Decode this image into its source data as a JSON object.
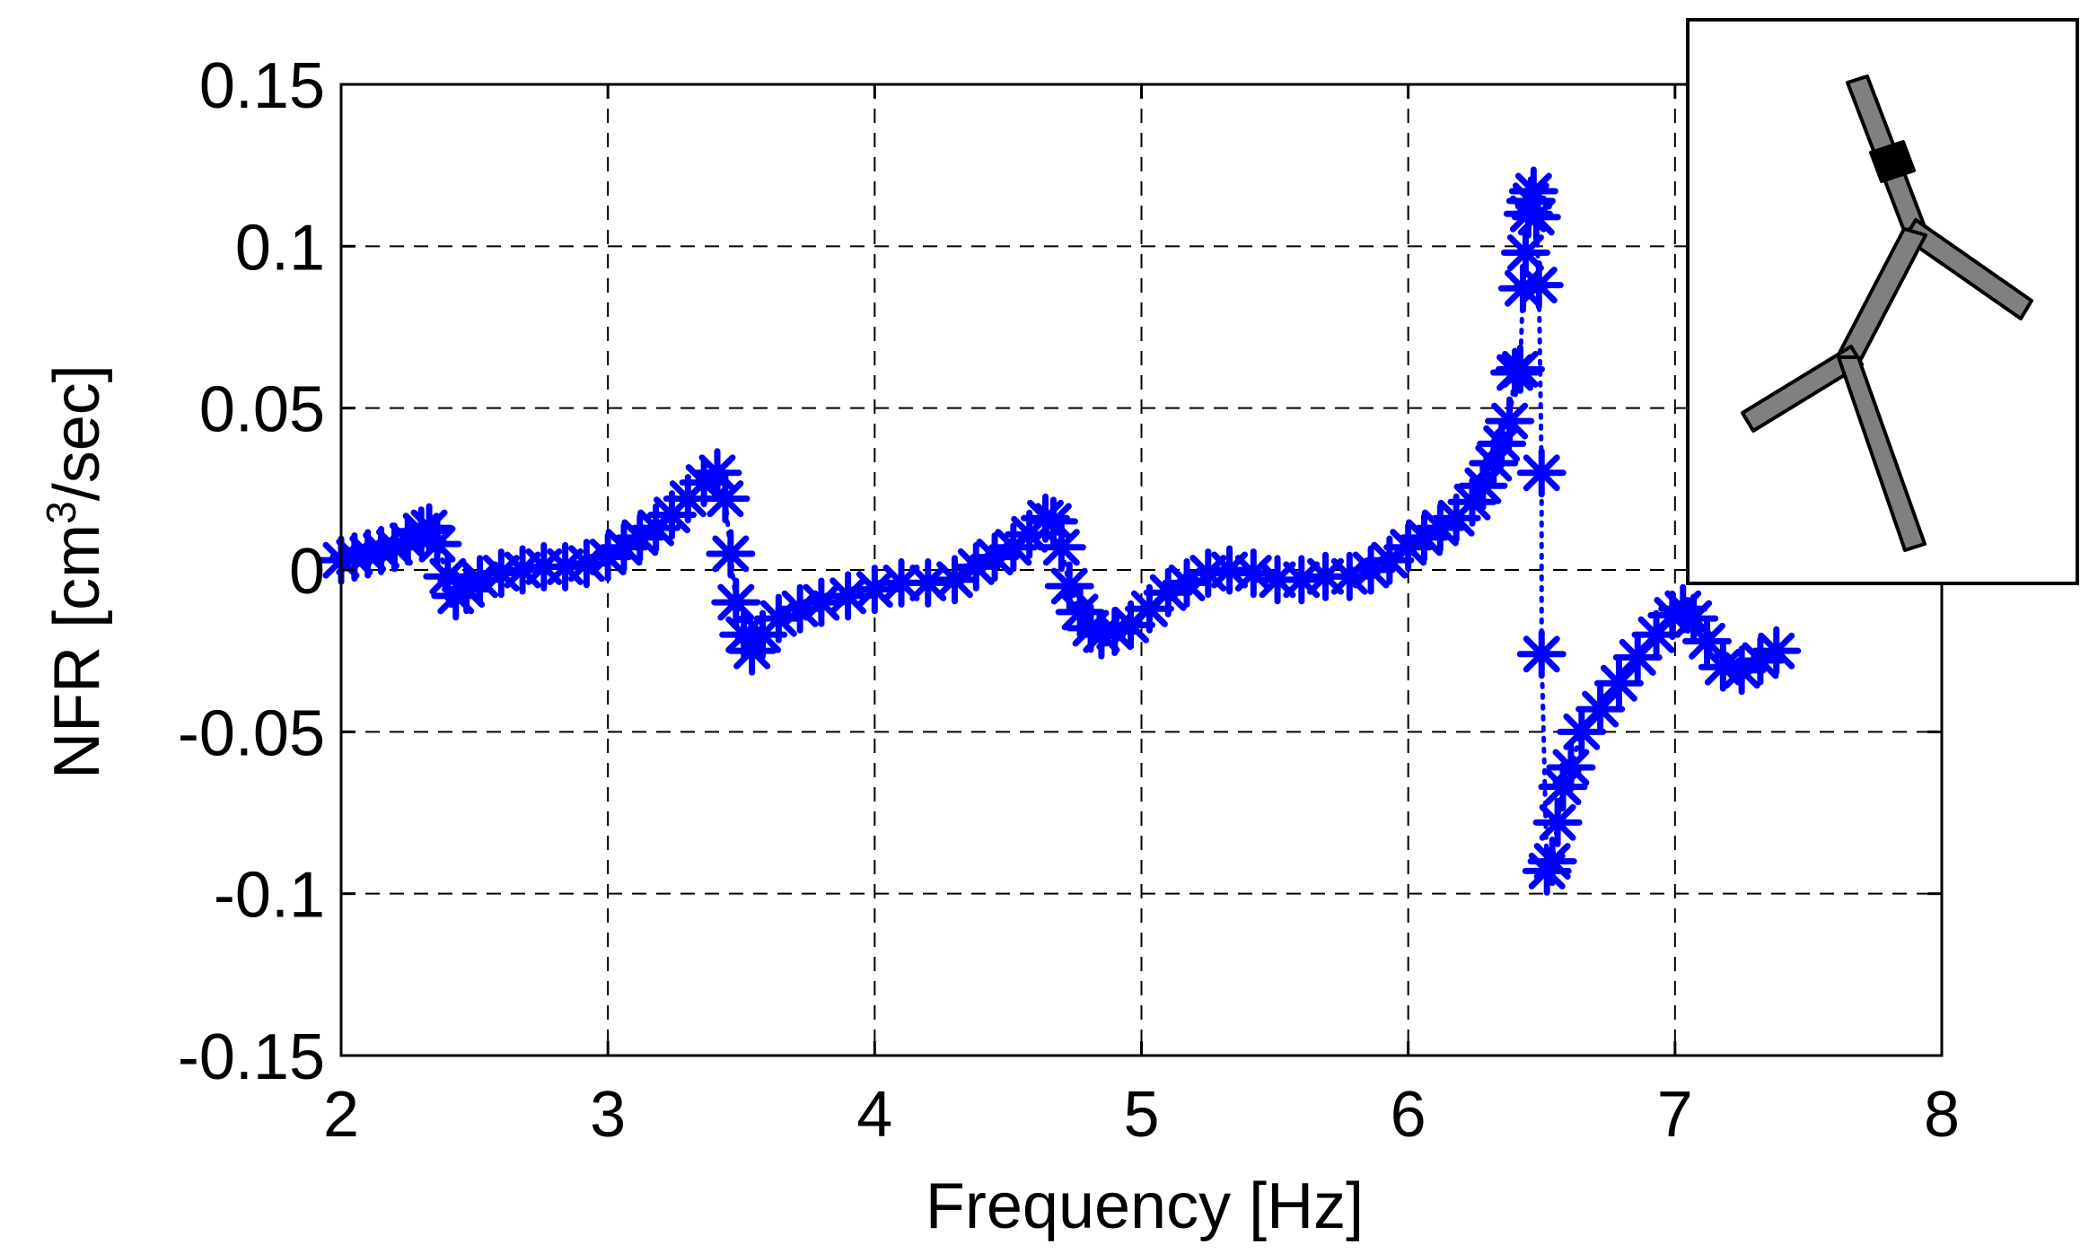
{
  "chart_data": {
    "type": "scatter",
    "title": "",
    "xlabel": "Frequency [Hz]",
    "ylabel_parts": {
      "prefix": "NFR [cm",
      "superscript": "3",
      "suffix": "/sec]"
    },
    "xlim": [
      2,
      8
    ],
    "ylim": [
      -0.15,
      0.15
    ],
    "x_ticks": [
      2,
      3,
      4,
      5,
      6,
      7,
      8
    ],
    "x_tick_labels": [
      "2",
      "3",
      "4",
      "5",
      "6",
      "7",
      "8"
    ],
    "y_ticks": [
      -0.15,
      -0.1,
      -0.05,
      0,
      0.05,
      0.1,
      0.15
    ],
    "y_tick_labels": [
      "-0.15",
      "-0.1",
      "-0.05",
      "0",
      "0.05",
      "0.1",
      "0.15"
    ],
    "grid": true,
    "legend": "none",
    "series": [
      {
        "color": "#0000ff",
        "marker": "asterisk",
        "line_style": "dotted",
        "points": [
          [
            2.0,
            0.003
          ],
          [
            2.05,
            0.004
          ],
          [
            2.1,
            0.005
          ],
          [
            2.15,
            0.006
          ],
          [
            2.2,
            0.007
          ],
          [
            2.25,
            0.009
          ],
          [
            2.3,
            0.012
          ],
          [
            2.33,
            0.013
          ],
          [
            2.36,
            0.008
          ],
          [
            2.4,
            -0.002
          ],
          [
            2.43,
            -0.008
          ],
          [
            2.47,
            -0.006
          ],
          [
            2.52,
            -0.003
          ],
          [
            2.6,
            -0.001
          ],
          [
            2.68,
            0.0
          ],
          [
            2.76,
            0.001
          ],
          [
            2.84,
            0.001
          ],
          [
            2.92,
            0.002
          ],
          [
            3.0,
            0.004
          ],
          [
            3.06,
            0.007
          ],
          [
            3.12,
            0.01
          ],
          [
            3.18,
            0.013
          ],
          [
            3.24,
            0.017
          ],
          [
            3.3,
            0.022
          ],
          [
            3.36,
            0.027
          ],
          [
            3.41,
            0.03
          ],
          [
            3.44,
            0.022
          ],
          [
            3.46,
            0.005
          ],
          [
            3.48,
            -0.01
          ],
          [
            3.51,
            -0.02
          ],
          [
            3.54,
            -0.025
          ],
          [
            3.58,
            -0.02
          ],
          [
            3.64,
            -0.015
          ],
          [
            3.72,
            -0.012
          ],
          [
            3.8,
            -0.01
          ],
          [
            3.9,
            -0.008
          ],
          [
            4.0,
            -0.006
          ],
          [
            4.1,
            -0.004
          ],
          [
            4.2,
            -0.004
          ],
          [
            4.3,
            -0.003
          ],
          [
            4.38,
            0.001
          ],
          [
            4.45,
            0.004
          ],
          [
            4.52,
            0.007
          ],
          [
            4.58,
            0.011
          ],
          [
            4.64,
            0.016
          ],
          [
            4.67,
            0.015
          ],
          [
            4.7,
            0.007
          ],
          [
            4.73,
            -0.005
          ],
          [
            4.77,
            -0.013
          ],
          [
            4.81,
            -0.018
          ],
          [
            4.85,
            -0.02
          ],
          [
            4.9,
            -0.019
          ],
          [
            4.96,
            -0.017
          ],
          [
            5.03,
            -0.012
          ],
          [
            5.1,
            -0.007
          ],
          [
            5.17,
            -0.004
          ],
          [
            5.25,
            -0.001
          ],
          [
            5.33,
            0.0
          ],
          [
            5.42,
            -0.001
          ],
          [
            5.51,
            -0.003
          ],
          [
            5.6,
            -0.003
          ],
          [
            5.69,
            -0.002
          ],
          [
            5.78,
            -0.002
          ],
          [
            5.86,
            0.0
          ],
          [
            5.93,
            0.003
          ],
          [
            6.0,
            0.007
          ],
          [
            6.06,
            0.01
          ],
          [
            6.12,
            0.013
          ],
          [
            6.18,
            0.016
          ],
          [
            6.24,
            0.021
          ],
          [
            6.28,
            0.026
          ],
          [
            6.32,
            0.033
          ],
          [
            6.35,
            0.039
          ],
          [
            6.38,
            0.046
          ],
          [
            6.4,
            0.061
          ],
          [
            6.42,
            0.062
          ],
          [
            6.43,
            0.087
          ],
          [
            6.44,
            0.098
          ],
          [
            6.45,
            0.11
          ],
          [
            6.46,
            0.114
          ],
          [
            6.47,
            0.117
          ],
          [
            6.48,
            0.109
          ],
          [
            6.49,
            0.088
          ],
          [
            6.5,
            0.03
          ],
          [
            6.5,
            -0.026
          ],
          [
            6.52,
            -0.093
          ],
          [
            6.54,
            -0.09
          ],
          [
            6.56,
            -0.078
          ],
          [
            6.58,
            -0.067
          ],
          [
            6.61,
            -0.061
          ],
          [
            6.65,
            -0.05
          ],
          [
            6.72,
            -0.043
          ],
          [
            6.79,
            -0.035
          ],
          [
            6.86,
            -0.027
          ],
          [
            6.93,
            -0.02
          ],
          [
            6.99,
            -0.014
          ],
          [
            7.03,
            -0.012
          ],
          [
            7.07,
            -0.015
          ],
          [
            7.12,
            -0.022
          ],
          [
            7.18,
            -0.03
          ],
          [
            7.25,
            -0.031
          ],
          [
            7.32,
            -0.028
          ],
          [
            7.38,
            -0.025
          ]
        ]
      }
    ]
  },
  "inset": {
    "kind": "Y-shaped branching tube schematic with a black band on the upper branch",
    "tube_color": "#808080",
    "band_color": "#000000",
    "frame_color": "#000000"
  }
}
